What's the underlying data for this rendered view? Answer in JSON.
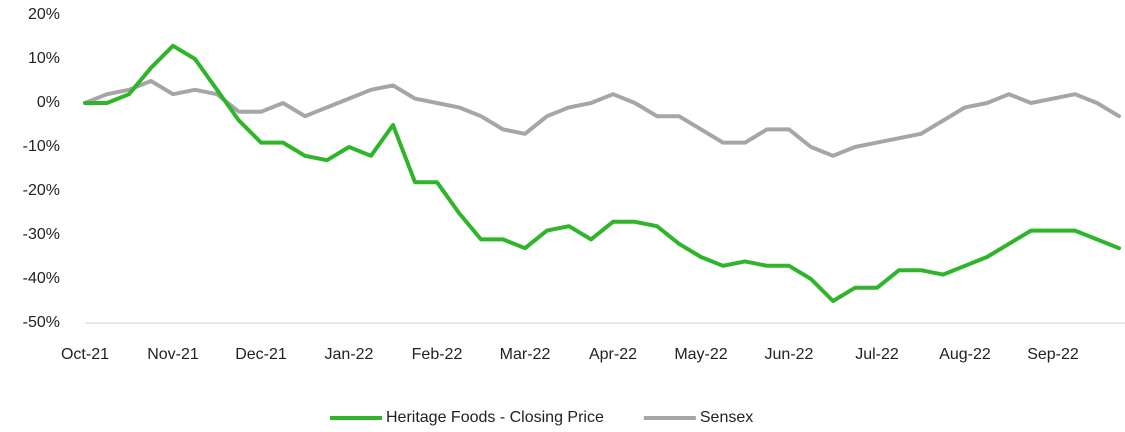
{
  "chart_data": {
    "type": "line",
    "categories": [
      "Oct-21",
      null,
      null,
      null,
      "Nov-21",
      null,
      null,
      null,
      "Dec-21",
      null,
      null,
      null,
      "Jan-22",
      null,
      null,
      null,
      "Feb-22",
      null,
      null,
      null,
      "Mar-22",
      null,
      null,
      null,
      "Apr-22",
      null,
      null,
      null,
      "May-22",
      null,
      null,
      null,
      "Jun-22",
      null,
      null,
      null,
      "Jul-22",
      null,
      null,
      null,
      "Aug-22",
      null,
      null,
      null,
      "Sep-22",
      null,
      null,
      null
    ],
    "series": [
      {
        "name": "Heritage Foods - Closing Price",
        "color": "#2fb52a",
        "values": [
          0,
          0,
          2,
          8,
          13,
          10,
          3,
          -4,
          -9,
          -9,
          -12,
          -13,
          -10,
          -12,
          -5,
          -18,
          -18,
          -25,
          -31,
          -31,
          -33,
          -29,
          -28,
          -31,
          -27,
          -27,
          -28,
          -32,
          -35,
          -37,
          -36,
          -37,
          -37,
          -40,
          -45,
          -42,
          -42,
          -38,
          -38,
          -39,
          -37,
          -35,
          -32,
          -29,
          -29,
          -29,
          -31,
          -33
        ]
      },
      {
        "name": "Sensex",
        "color": "#a6a6a6",
        "values": [
          0,
          2,
          3,
          5,
          2,
          3,
          2,
          -2,
          -2,
          0,
          -3,
          -1,
          1,
          3,
          4,
          1,
          0,
          -1,
          -3,
          -6,
          -7,
          -3,
          -1,
          0,
          2,
          0,
          -3,
          -3,
          -6,
          -9,
          -9,
          -6,
          -6,
          -10,
          -12,
          -10,
          -9,
          -8,
          -7,
          -4,
          -1,
          0,
          2,
          0,
          1,
          2,
          0,
          -3
        ]
      }
    ],
    "ylim": [
      -50,
      20
    ],
    "yticks": [
      {
        "value": -50,
        "label": "-50%"
      },
      {
        "value": -40,
        "label": "-40%"
      },
      {
        "value": -30,
        "label": "-30%"
      },
      {
        "value": -20,
        "label": "-20%"
      },
      {
        "value": -10,
        "label": "-10%"
      },
      {
        "value": 0,
        "label": "0%"
      },
      {
        "value": 10,
        "label": "10%"
      },
      {
        "value": 20,
        "label": "20%"
      }
    ],
    "grid": false,
    "legend": "bottom"
  }
}
